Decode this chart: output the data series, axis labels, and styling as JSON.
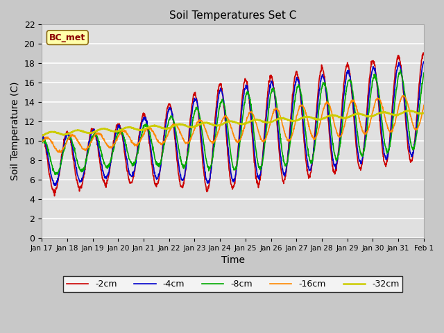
{
  "title": "Soil Temperatures Set C",
  "xlabel": "Time",
  "ylabel": "Soil Temperature (C)",
  "annotation": "BC_met",
  "ylim": [
    0,
    22
  ],
  "yticks": [
    0,
    2,
    4,
    6,
    8,
    10,
    12,
    14,
    16,
    18,
    20,
    22
  ],
  "fig_bg_color": "#c8c8c8",
  "plot_bg_color": "#e0e0e0",
  "line_colors": {
    "-2cm": "#cc0000",
    "-4cm": "#0000cc",
    "-8cm": "#00aa00",
    "-16cm": "#ff8800",
    "-32cm": "#cccc00"
  },
  "line_widths": {
    "-2cm": 1.2,
    "-4cm": 1.2,
    "-8cm": 1.2,
    "-16cm": 1.2,
    "-32cm": 1.8
  },
  "xtick_labels": [
    "Jan 17",
    "Jan 18",
    "Jan 19",
    "Jan 20",
    "Jan 21",
    "Jan 22",
    "Jan 23",
    "Jan 24",
    "Jan 25",
    "Jan 26",
    "Jan 27",
    "Jan 28",
    "Jan 29",
    "Jan 30",
    "Jan 31",
    "Feb 1"
  ],
  "figsize": [
    6.4,
    4.8
  ],
  "dpi": 100
}
